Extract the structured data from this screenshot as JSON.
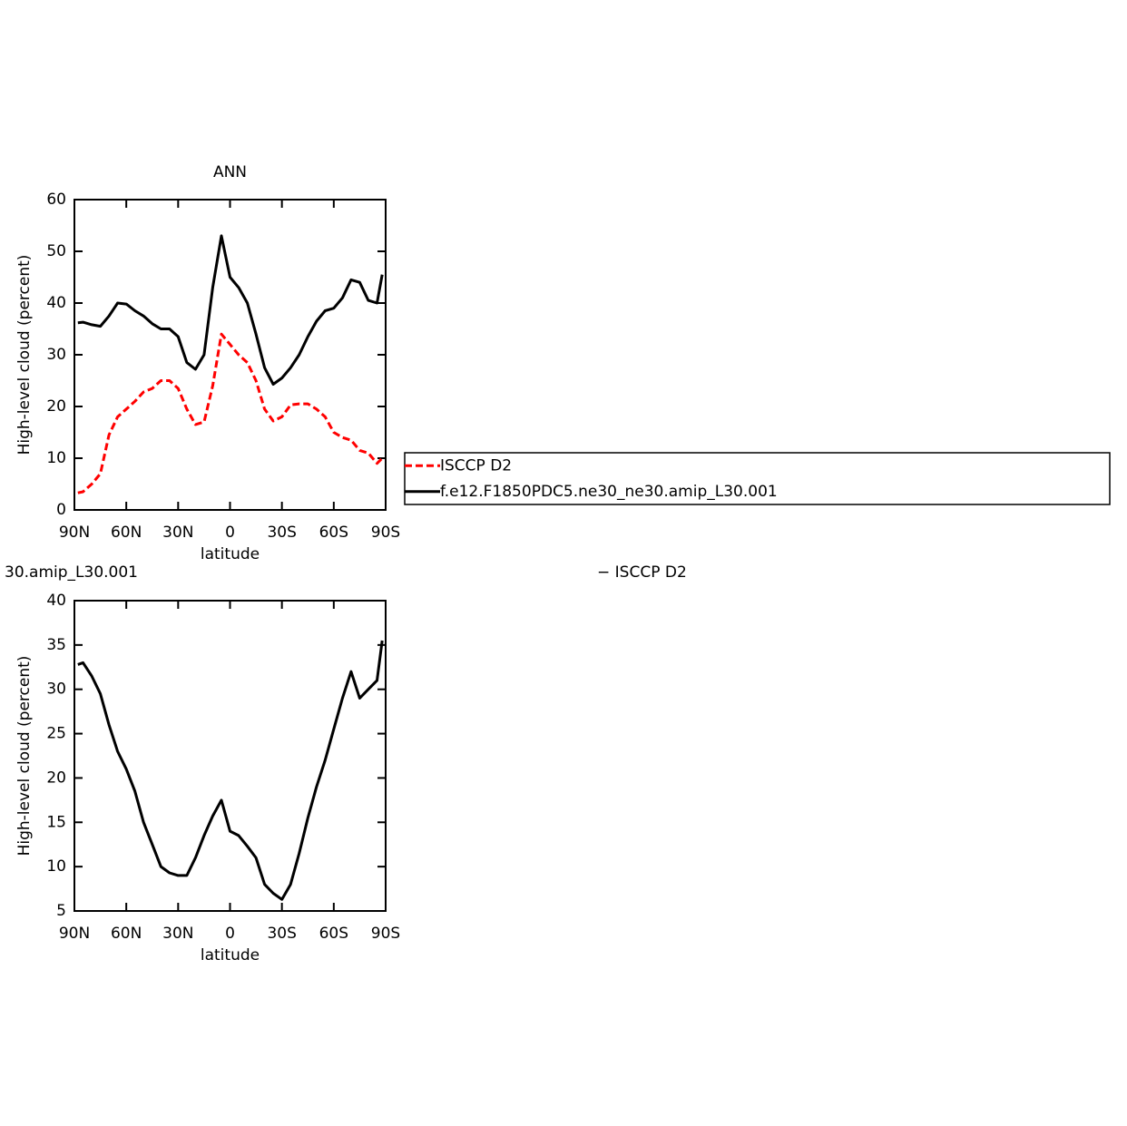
{
  "chart_data": [
    {
      "type": "line",
      "title": "ANN",
      "x_label": "latitude",
      "y_label": "High-level cloud (percent)",
      "x": [
        88,
        85,
        80,
        75,
        70,
        65,
        60,
        55,
        50,
        45,
        40,
        35,
        30,
        25,
        20,
        15,
        10,
        5,
        0,
        -5,
        -10,
        -15,
        -20,
        -25,
        -30,
        -35,
        -40,
        -45,
        -50,
        -55,
        -60,
        -65,
        -70,
        -75,
        -80,
        -85,
        -88
      ],
      "series": [
        {
          "name": "ISCCP D2",
          "color": "#ff0000",
          "line_style": "dashed",
          "values": [
            3.3,
            3.5,
            5,
            7,
            14.5,
            18,
            19.5,
            21,
            22.8,
            23.5,
            25,
            25,
            23.5,
            19.5,
            16.5,
            17,
            24,
            34,
            32,
            30,
            28.5,
            25,
            19.5,
            17.2,
            18,
            20.3,
            20.5,
            20.5,
            19.5,
            18,
            15,
            14,
            13.5,
            11.5,
            11,
            9,
            10
          ]
        },
        {
          "name": "f.e12.F1850PDC5.ne30_ne30.amip_L30.001",
          "color": "#000000",
          "line_style": "solid",
          "values": [
            36.2,
            36.3,
            35.8,
            35.5,
            37.5,
            40,
            39.8,
            38.5,
            37.5,
            36,
            35,
            35,
            33.5,
            28.5,
            27.2,
            30,
            43,
            53,
            45,
            43,
            40,
            34,
            27.5,
            24.3,
            25.5,
            27.5,
            30,
            33.5,
            36.5,
            38.5,
            39,
            41,
            44.5,
            44,
            40.5,
            40,
            45.5
          ]
        }
      ],
      "xlim": [
        90,
        -90
      ],
      "xticks": [
        {
          "value": 90,
          "label": "90N"
        },
        {
          "value": 60,
          "label": "60N"
        },
        {
          "value": 30,
          "label": "30N"
        },
        0,
        {
          "value": -30,
          "label": "30S"
        },
        {
          "value": -60,
          "label": "60S"
        },
        {
          "value": -90,
          "label": "90S"
        }
      ],
      "ylim": [
        0,
        60
      ],
      "yticks": [
        0,
        10,
        20,
        30,
        40,
        50,
        60
      ],
      "legend": "right"
    },
    {
      "type": "line",
      "title_left": "30.amip_L30.001",
      "title_right": "− ISCCP D2",
      "x_label": "latitude",
      "y_label": "High-level cloud (percent)",
      "x": [
        88,
        85,
        80,
        75,
        70,
        65,
        60,
        55,
        50,
        45,
        40,
        35,
        30,
        25,
        20,
        15,
        10,
        5,
        0,
        -5,
        -10,
        -15,
        -20,
        -25,
        -30,
        -35,
        -40,
        -45,
        -50,
        -55,
        -60,
        -65,
        -70,
        -75,
        -80,
        -85,
        -88
      ],
      "series": [
        {
          "color": "#000000",
          "line_style": "solid",
          "values": [
            32.8,
            33,
            31.5,
            29.5,
            26,
            23,
            21,
            18.5,
            15,
            12.5,
            10,
            9.3,
            9,
            9,
            11,
            13.5,
            15.7,
            17.5,
            14,
            13.5,
            12.3,
            11,
            8,
            7,
            6.3,
            8,
            11.5,
            15.5,
            19,
            22,
            25.5,
            29,
            32,
            29,
            30,
            31,
            35.5
          ]
        }
      ],
      "xlim": [
        90,
        -90
      ],
      "xticks": [
        {
          "value": 90,
          "label": "90N"
        },
        {
          "value": 60,
          "label": "60N"
        },
        {
          "value": 30,
          "label": "30N"
        },
        0,
        {
          "value": -30,
          "label": "30S"
        },
        {
          "value": -60,
          "label": "60S"
        },
        {
          "value": -90,
          "label": "90S"
        }
      ],
      "ylim": [
        5,
        40
      ],
      "yticks": [
        5,
        10,
        15,
        20,
        25,
        30,
        35,
        40
      ]
    }
  ]
}
